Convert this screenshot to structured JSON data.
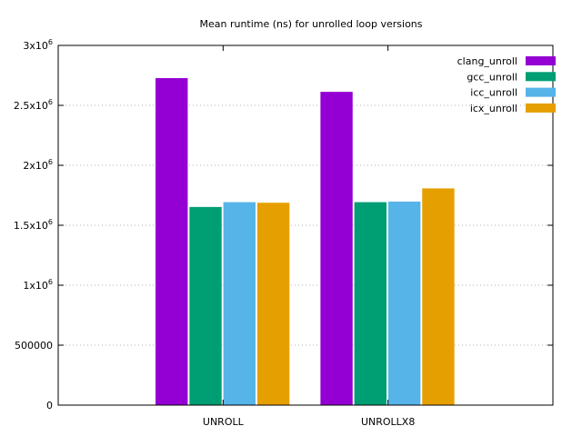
{
  "chart_data": {
    "type": "bar",
    "title": "Mean runtime (ns) for unrolled loop versions",
    "xlabel": "",
    "ylabel": "",
    "categories": [
      "UNROLL",
      "UNROLLX8"
    ],
    "series": [
      {
        "name": "clang_unroll",
        "color": "#9400d3",
        "values": [
          2730000,
          2615000
        ]
      },
      {
        "name": "gcc_unroll",
        "color": "#009e73",
        "values": [
          1655000,
          1695000
        ]
      },
      {
        "name": "icc_unroll",
        "color": "#56b4e9",
        "values": [
          1695000,
          1700000
        ]
      },
      {
        "name": "icx_unroll",
        "color": "#e69f00",
        "values": [
          1690000,
          1810000
        ]
      }
    ],
    "ylim": [
      0,
      3000000
    ],
    "y_ticks": [
      {
        "value": 0,
        "mant": "0",
        "exp": ""
      },
      {
        "value": 500000,
        "mant": "500000",
        "exp": ""
      },
      {
        "value": 1000000,
        "mant": "1x10",
        "exp": "6"
      },
      {
        "value": 1500000,
        "mant": "1.5x10",
        "exp": "6"
      },
      {
        "value": 2000000,
        "mant": "2x10",
        "exp": "6"
      },
      {
        "value": 2500000,
        "mant": "2.5x10",
        "exp": "6"
      },
      {
        "value": 3000000,
        "mant": "3x10",
        "exp": "6"
      }
    ],
    "grid": true,
    "legend_position": "top-right"
  }
}
